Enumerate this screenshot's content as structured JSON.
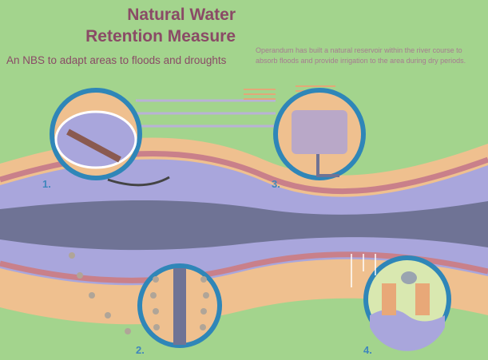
{
  "header": {
    "title_lines": [
      "Natural Water",
      "Retention Measure"
    ],
    "subtitle": "An NBS to adapt areas to floods and droughts",
    "description_lines": [
      "Operandum has built a natural reservoir within the river course to",
      "absorb floods and provide irrigation to the area during dry periods."
    ]
  },
  "steps": [
    {
      "label": "1."
    },
    {
      "label": "2."
    },
    {
      "label": "3."
    },
    {
      "label": "4."
    }
  ]
}
